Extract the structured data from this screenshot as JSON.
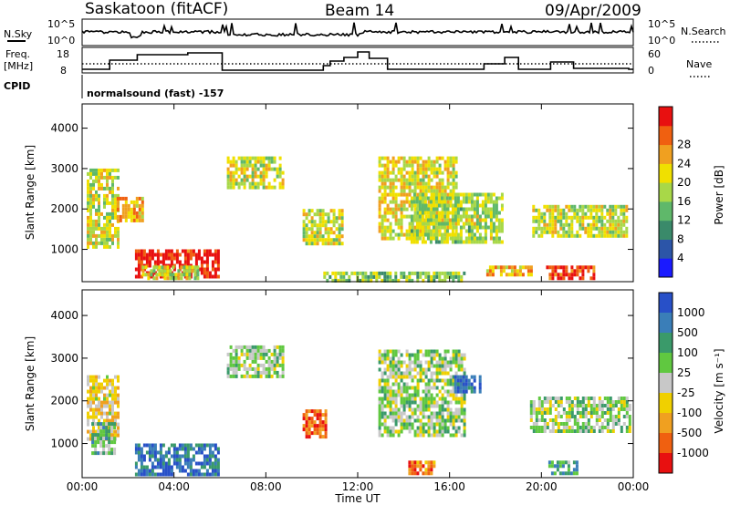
{
  "header": {
    "radar": "Saskatoon (fitACF)",
    "beam": "Beam 14",
    "date": "09/Apr/2009"
  },
  "panels": {
    "nsky": {
      "label": "N.Sky",
      "tick_top": "10^5",
      "tick_bottom": "10^0",
      "right_label": "N.Search",
      "right_tick_top": "10^5",
      "right_tick_bottom": "10^0"
    },
    "freq": {
      "label_line1": "Freq.",
      "label_line2": "[MHz]",
      "tick_top": "18",
      "tick_bottom": "8",
      "right_label": "Nave",
      "right_tick_top": "60",
      "right_tick_bottom": "0"
    },
    "cpid": {
      "label": "CPID",
      "program": "normalsound (fast) -157"
    }
  },
  "chart_data": [
    {
      "type": "heatmap",
      "name": "power",
      "ylabel": "Slant Range [km]",
      "yticks": [
        "1000",
        "2000",
        "3000",
        "4000"
      ],
      "ylim": [
        200,
        4600
      ],
      "colorbar_label": "Power [dB]",
      "colorbar_ticks": [
        "4",
        "8",
        "12",
        "16",
        "20",
        "24",
        "28"
      ],
      "colors": [
        "#1a1aff",
        "#2c55a8",
        "#3a8a6a",
        "#5fb86a",
        "#a8d848",
        "#f0e000",
        "#f0a020",
        "#f06010",
        "#e81010"
      ],
      "regions": [
        {
          "t0": 0.2,
          "t1": 1.6,
          "r0": 1100,
          "r1": 3000,
          "level": 0.55
        },
        {
          "t0": 1.5,
          "t1": 2.6,
          "r0": 1700,
          "r1": 2300,
          "level": 0.7
        },
        {
          "t0": 2.3,
          "t1": 5.9,
          "r0": 300,
          "r1": 1000,
          "level": 0.95
        },
        {
          "t0": 2.6,
          "t1": 5.0,
          "r0": 250,
          "r1": 600,
          "level": 0.55
        },
        {
          "t0": 6.3,
          "t1": 8.7,
          "r0": 2500,
          "r1": 3300,
          "level": 0.55
        },
        {
          "t0": 9.6,
          "t1": 11.3,
          "r0": 1100,
          "r1": 2000,
          "level": 0.55
        },
        {
          "t0": 12.9,
          "t1": 16.3,
          "r0": 1300,
          "r1": 3300,
          "level": 0.6
        },
        {
          "t0": 14.3,
          "t1": 18.3,
          "r0": 1200,
          "r1": 2400,
          "level": 0.5
        },
        {
          "t0": 17.6,
          "t1": 19.6,
          "r0": 400,
          "r1": 600,
          "level": 0.7
        },
        {
          "t0": 19.6,
          "t1": 23.7,
          "r0": 1300,
          "r1": 2100,
          "level": 0.55
        },
        {
          "t0": 20.2,
          "t1": 22.3,
          "r0": 300,
          "r1": 600,
          "level": 0.9
        },
        {
          "t0": 10.5,
          "t1": 16.6,
          "r0": 200,
          "r1": 450,
          "level": 0.45
        }
      ]
    },
    {
      "type": "heatmap",
      "name": "velocity",
      "ylabel": "Slant Range [km]",
      "yticks": [
        "1000",
        "2000",
        "3000",
        "4000"
      ],
      "ylim": [
        200,
        4600
      ],
      "colorbar_label": "Velocity [m s⁻¹]",
      "colorbar_ticks": [
        "1000",
        "500",
        "100",
        "25",
        "-25",
        "-100",
        "-500",
        "-1000"
      ],
      "colors": [
        "#2850c8",
        "#3a7eb8",
        "#3a9a6a",
        "#60c840",
        "#c8c8c8",
        "#f0d000",
        "#f0a020",
        "#f06010",
        "#e81010"
      ],
      "regions": [
        {
          "t0": 0.2,
          "t1": 1.6,
          "r0": 1100,
          "r1": 2600,
          "level": 0.6
        },
        {
          "t0": 0.4,
          "t1": 1.4,
          "r0": 800,
          "r1": 1500,
          "level": 0.35
        },
        {
          "t0": 2.3,
          "t1": 5.9,
          "r0": 300,
          "r1": 1000,
          "level": 0.15
        },
        {
          "t0": 6.3,
          "t1": 8.7,
          "r0": 2600,
          "r1": 3300,
          "level": 0.45
        },
        {
          "t0": 9.6,
          "t1": 10.6,
          "r0": 1200,
          "r1": 1800,
          "level": 0.85
        },
        {
          "t0": 12.9,
          "t1": 16.6,
          "r0": 1200,
          "r1": 3200,
          "level": 0.45
        },
        {
          "t0": 16.2,
          "t1": 17.3,
          "r0": 2200,
          "r1": 2600,
          "level": 0.1
        },
        {
          "t0": 19.5,
          "t1": 23.8,
          "r0": 1300,
          "r1": 2100,
          "level": 0.45
        },
        {
          "t0": 20.3,
          "t1": 21.5,
          "r0": 300,
          "r1": 600,
          "level": 0.3
        },
        {
          "t0": 14.2,
          "t1": 15.3,
          "r0": 300,
          "r1": 600,
          "level": 0.8
        }
      ]
    }
  ],
  "xaxis": {
    "label": "Time UT",
    "ticks": [
      "00:00",
      "04:00",
      "08:00",
      "12:00",
      "16:00",
      "20:00",
      "00:00"
    ]
  }
}
